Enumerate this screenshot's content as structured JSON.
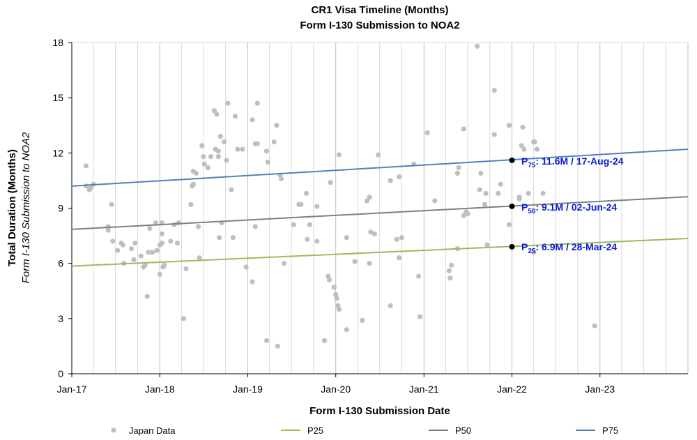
{
  "chart_data": {
    "type": "scatter",
    "title": "CR1 Visa Timeline (Months)",
    "subtitle": "Form I-130 Submission to NOA2",
    "xlabel": "Form I-130 Submission Date",
    "ylabel": "Total Duration (Months)",
    "ylabel_sub": "Form I-130 Submission to NOA2",
    "xlim": [
      "2017-01-01",
      "2024-01-01"
    ],
    "ylim": [
      0,
      18
    ],
    "yticks": [
      0,
      3,
      6,
      9,
      12,
      15,
      18
    ],
    "xtick_labels": [
      {
        "date": "2017-01-01",
        "label": "Jan-17"
      },
      {
        "date": "2018-01-01",
        "label": "Jan-18"
      },
      {
        "date": "2019-01-01",
        "label": "Jan-19"
      },
      {
        "date": "2020-01-01",
        "label": "Jan-20"
      },
      {
        "date": "2021-01-01",
        "label": "Jan-21"
      },
      {
        "date": "2022-01-01",
        "label": "Jan-22"
      },
      {
        "date": "2023-01-01",
        "label": "Jan-23"
      }
    ],
    "grid": "vertical",
    "legend": "bottom",
    "colors": {
      "points": "#bfbfbf",
      "P25": "#9bbb59",
      "P50": "#7f7f7f",
      "P75": "#4f81bd",
      "annotation": "#0a18d6"
    },
    "scatter": {
      "name": "Japan Data",
      "points": [
        [
          "2017-03-01",
          11.3
        ],
        [
          "2017-03-01",
          10.2
        ],
        [
          "2017-03-15",
          10.0
        ],
        [
          "2017-03-20",
          10.1
        ],
        [
          "2017-04-01",
          10.3
        ],
        [
          "2017-06-01",
          8.0
        ],
        [
          "2017-06-01",
          7.8
        ],
        [
          "2017-06-15",
          9.2
        ],
        [
          "2017-06-20",
          7.2
        ],
        [
          "2017-07-10",
          6.7
        ],
        [
          "2017-07-25",
          7.1
        ],
        [
          "2017-08-01",
          7.0
        ],
        [
          "2017-08-05",
          6.0
        ],
        [
          "2017-09-05",
          6.8
        ],
        [
          "2017-09-15",
          6.2
        ],
        [
          "2017-09-20",
          7.1
        ],
        [
          "2017-10-15",
          6.4
        ],
        [
          "2017-10-25",
          5.8
        ],
        [
          "2017-11-01",
          5.9
        ],
        [
          "2017-11-10",
          4.2
        ],
        [
          "2017-11-15",
          6.6
        ],
        [
          "2017-11-20",
          7.9
        ],
        [
          "2017-12-01",
          6.6
        ],
        [
          "2017-12-15",
          8.2
        ],
        [
          "2017-12-20",
          6.7
        ],
        [
          "2018-01-01",
          5.4
        ],
        [
          "2018-01-01",
          7.0
        ],
        [
          "2018-01-10",
          8.2
        ],
        [
          "2018-01-10",
          7.6
        ],
        [
          "2018-01-10",
          7.1
        ],
        [
          "2018-01-15",
          5.8
        ],
        [
          "2018-01-20",
          5.9
        ],
        [
          "2018-02-15",
          7.2
        ],
        [
          "2018-03-01",
          8.1
        ],
        [
          "2018-03-15",
          7.1
        ],
        [
          "2018-03-20",
          8.2
        ],
        [
          "2018-04-20",
          5.7
        ],
        [
          "2018-04-10",
          3.0
        ],
        [
          "2018-05-10",
          9.2
        ],
        [
          "2018-05-15",
          10.2
        ],
        [
          "2018-05-20",
          10.3
        ],
        [
          "2018-05-20",
          11.0
        ],
        [
          "2018-06-01",
          10.9
        ],
        [
          "2018-06-10",
          8.0
        ],
        [
          "2018-06-15",
          6.3
        ],
        [
          "2018-06-25",
          12.4
        ],
        [
          "2018-07-01",
          11.8
        ],
        [
          "2018-07-05",
          11.4
        ],
        [
          "2018-07-20",
          11.2
        ],
        [
          "2018-08-01",
          11.8
        ],
        [
          "2018-08-15",
          14.3
        ],
        [
          "2018-08-20",
          12.2
        ],
        [
          "2018-08-25",
          14.1
        ],
        [
          "2018-09-01",
          12.1
        ],
        [
          "2018-09-01",
          11.8
        ],
        [
          "2018-09-05",
          7.4
        ],
        [
          "2018-09-10",
          12.9
        ],
        [
          "2018-09-15",
          8.2
        ],
        [
          "2018-09-25",
          12.6
        ],
        [
          "2018-10-05",
          11.6
        ],
        [
          "2018-10-10",
          14.7
        ],
        [
          "2018-10-25",
          10.0
        ],
        [
          "2018-11-01",
          7.4
        ],
        [
          "2018-11-10",
          14.0
        ],
        [
          "2018-11-20",
          12.2
        ],
        [
          "2018-12-10",
          12.2
        ],
        [
          "2018-12-25",
          5.8
        ],
        [
          "2019-01-20",
          5.0
        ],
        [
          "2019-01-20",
          13.8
        ],
        [
          "2019-02-01",
          12.5
        ],
        [
          "2019-02-10",
          12.5
        ],
        [
          "2019-02-01",
          8.0
        ],
        [
          "2019-02-10",
          14.7
        ],
        [
          "2019-03-20",
          12.1
        ],
        [
          "2019-03-25",
          11.5
        ],
        [
          "2019-03-20",
          1.8
        ],
        [
          "2019-04-20",
          12.6
        ],
        [
          "2019-05-01",
          13.5
        ],
        [
          "2019-05-05",
          1.5
        ],
        [
          "2019-05-15",
          10.8
        ],
        [
          "2019-05-20",
          10.6
        ],
        [
          "2019-06-01",
          6.0
        ],
        [
          "2019-07-10",
          8.1
        ],
        [
          "2019-08-01",
          9.2
        ],
        [
          "2019-08-10",
          9.2
        ],
        [
          "2019-09-01",
          9.8
        ],
        [
          "2019-09-05",
          7.3
        ],
        [
          "2019-09-15",
          8.1
        ],
        [
          "2019-10-15",
          9.1
        ],
        [
          "2019-10-15",
          7.2
        ],
        [
          "2019-11-15",
          1.8
        ],
        [
          "2019-12-01",
          5.3
        ],
        [
          "2019-12-05",
          5.1
        ],
        [
          "2019-12-10",
          10.4
        ],
        [
          "2019-12-25",
          4.7
        ],
        [
          "2020-01-01",
          4.3
        ],
        [
          "2020-01-05",
          4.1
        ],
        [
          "2020-01-10",
          3.7
        ],
        [
          "2020-01-15",
          3.5
        ],
        [
          "2020-01-15",
          11.9
        ],
        [
          "2020-02-15",
          7.4
        ],
        [
          "2020-02-15",
          2.4
        ],
        [
          "2020-03-20",
          6.1
        ],
        [
          "2020-04-20",
          2.9
        ],
        [
          "2020-05-10",
          9.4
        ],
        [
          "2020-05-20",
          9.6
        ],
        [
          "2020-05-20",
          6.0
        ],
        [
          "2020-05-25",
          7.7
        ],
        [
          "2020-06-10",
          7.6
        ],
        [
          "2020-06-25",
          11.9
        ],
        [
          "2020-08-15",
          3.7
        ],
        [
          "2020-08-15",
          10.5
        ],
        [
          "2020-09-10",
          7.3
        ],
        [
          "2020-09-20",
          6.3
        ],
        [
          "2020-09-20",
          10.7
        ],
        [
          "2020-10-01",
          7.4
        ],
        [
          "2020-11-20",
          11.4
        ],
        [
          "2020-12-10",
          5.3
        ],
        [
          "2020-12-15",
          3.1
        ],
        [
          "2021-01-15",
          13.1
        ],
        [
          "2021-02-15",
          9.4
        ],
        [
          "2021-04-15",
          5.6
        ],
        [
          "2021-04-20",
          5.2
        ],
        [
          "2021-04-25",
          5.9
        ],
        [
          "2021-05-20",
          10.9
        ],
        [
          "2021-05-20",
          6.8
        ],
        [
          "2021-05-25",
          11.2
        ],
        [
          "2021-06-15",
          13.3
        ],
        [
          "2021-06-15",
          8.6
        ],
        [
          "2021-06-25",
          8.8
        ],
        [
          "2021-07-01",
          8.7
        ],
        [
          "2021-08-10",
          17.8
        ],
        [
          "2021-08-20",
          10.0
        ],
        [
          "2021-08-25",
          10.9
        ],
        [
          "2021-09-10",
          9.2
        ],
        [
          "2021-09-15",
          9.8
        ],
        [
          "2021-09-20",
          7.0
        ],
        [
          "2021-10-20",
          15.4
        ],
        [
          "2021-10-20",
          13.0
        ],
        [
          "2021-11-05",
          9.8
        ],
        [
          "2021-11-15",
          10.3
        ],
        [
          "2021-12-20",
          13.5
        ],
        [
          "2021-12-20",
          8.1
        ],
        [
          "2022-02-01",
          9.6
        ],
        [
          "2022-02-01",
          9.5
        ],
        [
          "2022-02-10",
          12.4
        ],
        [
          "2022-02-15",
          13.4
        ],
        [
          "2022-02-20",
          12.2
        ],
        [
          "2022-03-10",
          9.8
        ],
        [
          "2022-04-01",
          12.6
        ],
        [
          "2022-04-05",
          12.6
        ],
        [
          "2022-04-15",
          12.2
        ],
        [
          "2022-04-01",
          6.6
        ],
        [
          "2022-05-10",
          9.8
        ],
        [
          "2022-12-10",
          2.6
        ]
      ]
    },
    "series": [
      {
        "name": "P25",
        "x": [
          "2017-01-01",
          "2024-01-01"
        ],
        "y": [
          5.85,
          7.35
        ]
      },
      {
        "name": "P50",
        "x": [
          "2017-01-01",
          "2024-01-01"
        ],
        "y": [
          7.85,
          9.62
        ]
      },
      {
        "name": "P75",
        "x": [
          "2017-01-01",
          "2024-01-01"
        ],
        "y": [
          10.2,
          12.2
        ]
      }
    ],
    "markers": [
      {
        "x": "2022-01-01",
        "y": 11.6
      },
      {
        "x": "2022-01-01",
        "y": 9.1
      },
      {
        "x": "2022-01-01",
        "y": 6.9
      }
    ],
    "annotations": [
      {
        "prefix": "P",
        "sub": "75",
        "text": ": 11.6M / 17-Aug-24"
      },
      {
        "prefix": "P",
        "sub": "50",
        "text": ": 9.1M / 02-Jun-24"
      },
      {
        "prefix": "P",
        "sub": "25",
        "text": ": 6.9M / 28-Mar-24"
      }
    ],
    "legend_entries": [
      "Japan Data",
      "P25",
      "P50",
      "P75"
    ]
  }
}
